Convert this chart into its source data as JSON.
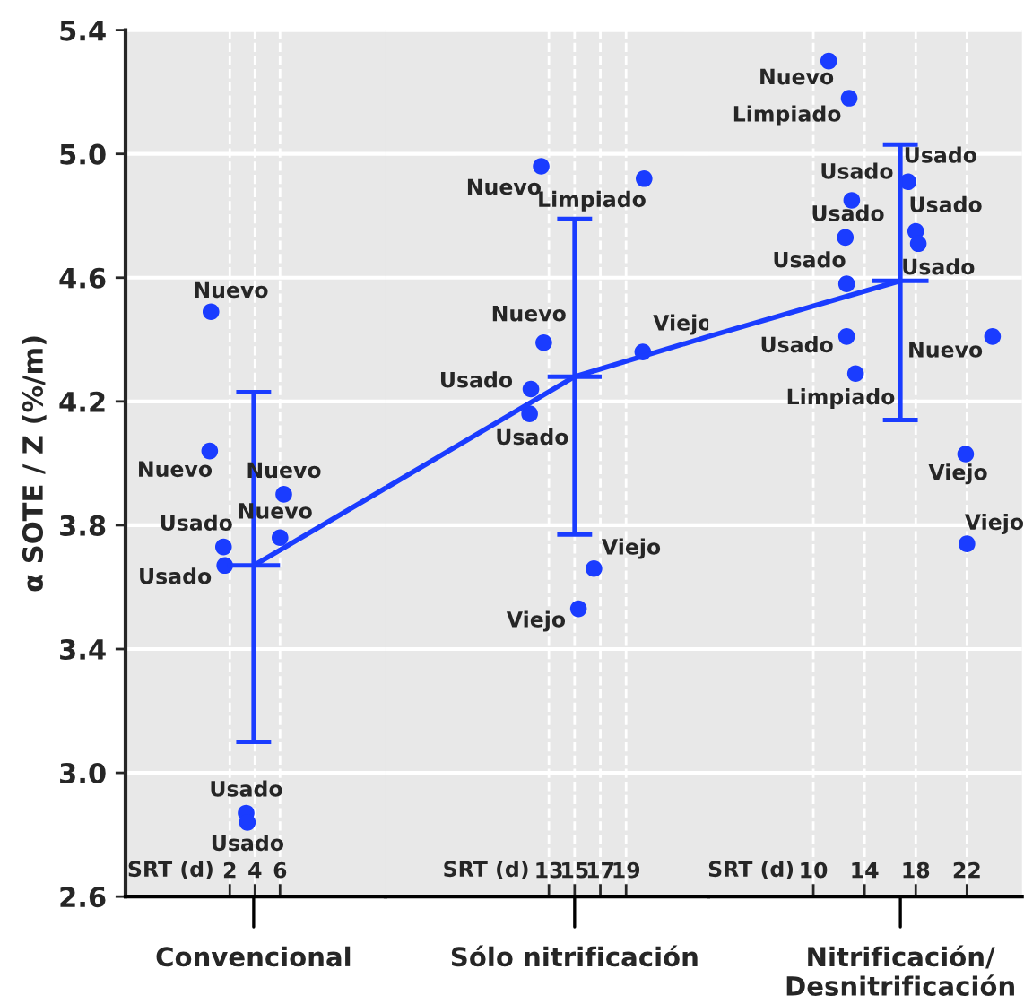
{
  "chart_data": [
    {
      "type": "scatter",
      "ylabel": "α SOTE / Z (%/m)",
      "xlabel": "SRT (d)",
      "annotations": [
        "Convencional"
      ],
      "xlim": [
        -6.3,
        14.4
      ],
      "ylim": [
        2.6,
        5.4
      ],
      "yticks": [
        {
          "value": 2.6,
          "label": "2.6"
        },
        {
          "value": 3.0,
          "label": "3.0"
        },
        {
          "value": 3.4,
          "label": "3.4"
        },
        {
          "value": 3.8,
          "label": "3.8"
        },
        {
          "value": 4.2,
          "label": "4.2"
        },
        {
          "value": 4.6,
          "label": "4.6"
        },
        {
          "value": 5.0,
          "label": "5.0"
        },
        {
          "value": 5.4,
          "label": "5.4"
        }
      ],
      "xticks": [
        2,
        4,
        6
      ],
      "grid": true,
      "series": [
        {
          "color": "#1a3cff",
          "marker": "circle",
          "x": [
            0.5,
            0.4,
            6.3,
            6.0,
            1.5,
            1.6,
            3.3,
            3.4
          ],
          "values": [
            4.49,
            4.04,
            3.9,
            3.76,
            3.73,
            3.67,
            2.87,
            2.84
          ],
          "value_labels": [
            "Nuevo",
            "Nuevo",
            "Nuevo",
            "Nuevo",
            "Usado",
            "Usado",
            "Usado",
            "Usado"
          ]
        },
        {
          "type": "line",
          "color": "#1a3cff",
          "x": [
            3.9,
            14.4
          ],
          "values": [
            3.67,
            3.92
          ],
          "errors": [
            [
              3.1,
              4.23
            ],
            null
          ],
          "xerrors": [
            2.1,
            null
          ]
        }
      ]
    },
    {
      "type": "scatter",
      "xlabel": "SRT (d)",
      "annotations": [
        "Sólo nitrificación"
      ],
      "tick_labels": "x",
      "xlim": [
        0.3,
        25.4
      ],
      "ylim": [
        2.6,
        5.4
      ],
      "yticks": [
        2.6,
        3.0,
        3.4,
        3.8,
        4.2,
        4.6,
        5.0,
        5.4
      ],
      "xticks": [
        13,
        15,
        17,
        19
      ],
      "grid": true,
      "series": [
        {
          "color": "#1a3cff",
          "marker": "circle",
          "x": [
            12.4,
            20.4,
            12.6,
            20.3,
            11.6,
            11.5,
            16.5,
            15.3
          ],
          "values": [
            4.96,
            4.92,
            4.39,
            4.36,
            4.24,
            4.16,
            3.66,
            3.53
          ],
          "value_labels": [
            "Nuevo",
            "Limpiado",
            "Nuevo",
            "Viejo",
            "Usado",
            "Usado",
            "Viejo",
            "Viejo"
          ]
        },
        {
          "type": "line",
          "color": "#1a3cff",
          "x": [
            0.3,
            15.0,
            25.4
          ],
          "values": [
            3.92,
            4.28,
            4.41
          ],
          "errors": [
            null,
            [
              3.77,
              4.79
            ],
            null
          ],
          "xerrors": [
            null,
            2.1,
            null
          ]
        }
      ]
    },
    {
      "type": "scatter",
      "xlabel": "SRT (d)",
      "annotations": [
        "Nitrificación/\nDesnitrificación"
      ],
      "tick_labels": "x",
      "xlim": [
        1.8,
        26.3
      ],
      "ylim": [
        2.6,
        5.4
      ],
      "yticks": [
        2.6,
        3.0,
        3.4,
        3.8,
        4.2,
        4.6,
        5.0,
        5.4
      ],
      "xticks": [
        10,
        14,
        18,
        22
      ],
      "grid": true,
      "series": [
        {
          "color": "#1a3cff",
          "marker": "circle",
          "x": [
            11.2,
            12.8,
            17.4,
            13.0,
            12.5,
            18.0,
            18.2,
            12.6,
            12.6,
            24.0,
            13.3,
            21.9,
            22.0
          ],
          "values": [
            5.3,
            5.18,
            4.91,
            4.85,
            4.73,
            4.75,
            4.71,
            4.58,
            4.41,
            4.41,
            4.29,
            4.03,
            3.74
          ],
          "value_labels": [
            "Nuevo",
            "Limpiado",
            "Usado",
            "Usado",
            "Usado",
            "Usado",
            "Usado",
            "Usado",
            "Usado",
            "Nuevo",
            "Limpiado",
            "Viejo",
            "Viejo"
          ]
        },
        {
          "type": "line",
          "color": "#1a3cff",
          "x": [
            1.8,
            16.8
          ],
          "values": [
            4.41,
            4.59
          ],
          "errors": [
            null,
            [
              4.14,
              5.03
            ]
          ],
          "xerrors": [
            null,
            2.2
          ]
        }
      ]
    }
  ]
}
